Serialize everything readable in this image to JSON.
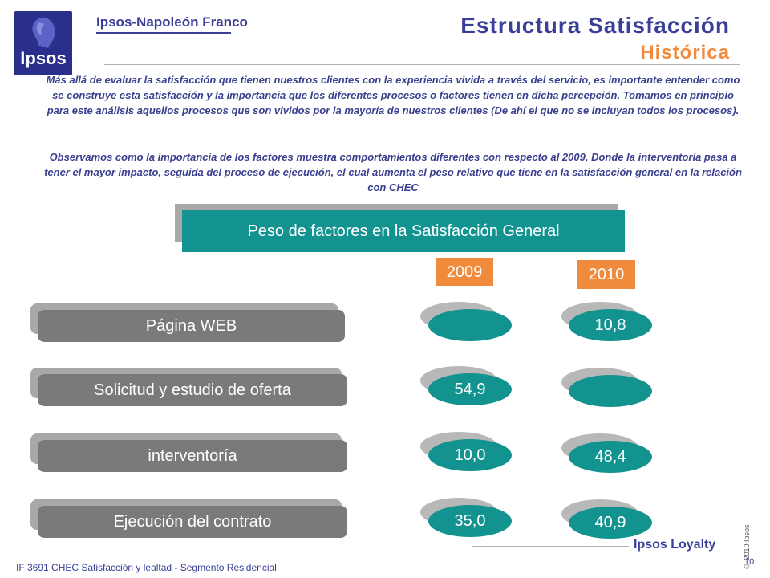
{
  "header": {
    "logo_text": "Ipsos",
    "brand": "Ipsos-Napoleón Franco",
    "title": "Estructura Satisfacción",
    "subtitle": "Histórica"
  },
  "intro": {
    "paragraph_1": "Más allá de evaluar la satisfacción que tienen nuestros clientes con la experiencia vivida a través del servicio, es importante entender  como se construye esta satisfacción y la importancia que los diferentes procesos o factores tienen en dicha percepción. Tomamos en principio para este análisis aquellos procesos que son vividos por la mayoría de nuestros clientes (De ahí el que no se incluyan todos los procesos).",
    "paragraph_2": "Observamos como la importancia de los factores muestra comportamientos diferentes con respecto al 2009, Donde la interventoría  pasa a tener el mayor impacto, seguida del  proceso de ejecución, el cual aumenta el peso relativo que tiene en la satisfacción general en la relación con CHEC"
  },
  "table": {
    "heading": "Peso de factores en la Satisfacción General",
    "years": [
      "2009",
      "2010"
    ],
    "rows": [
      {
        "label": "Página WEB",
        "v2009": "",
        "v2010": "10,8"
      },
      {
        "label": "Solicitud y estudio de oferta",
        "v2009": "54,9",
        "v2010": ""
      },
      {
        "label": "interventoría",
        "v2009": "10,0",
        "v2010": "48,4"
      },
      {
        "label": "Ejecución del contrato",
        "v2009": "35,0",
        "v2010": "40,9"
      }
    ]
  },
  "footer": {
    "copyright": "© 2010 Ipsos",
    "brand_program": "Ipsos Loyalty",
    "document_ref": "IF 3691  CHEC Satisfacción y lealtad  - Segmento Residencial",
    "page_number": "10"
  },
  "colors": {
    "navy": "#3b3f99",
    "teal": "#13938f",
    "orange": "#f08a3c",
    "gray": "#7a7a7a"
  }
}
